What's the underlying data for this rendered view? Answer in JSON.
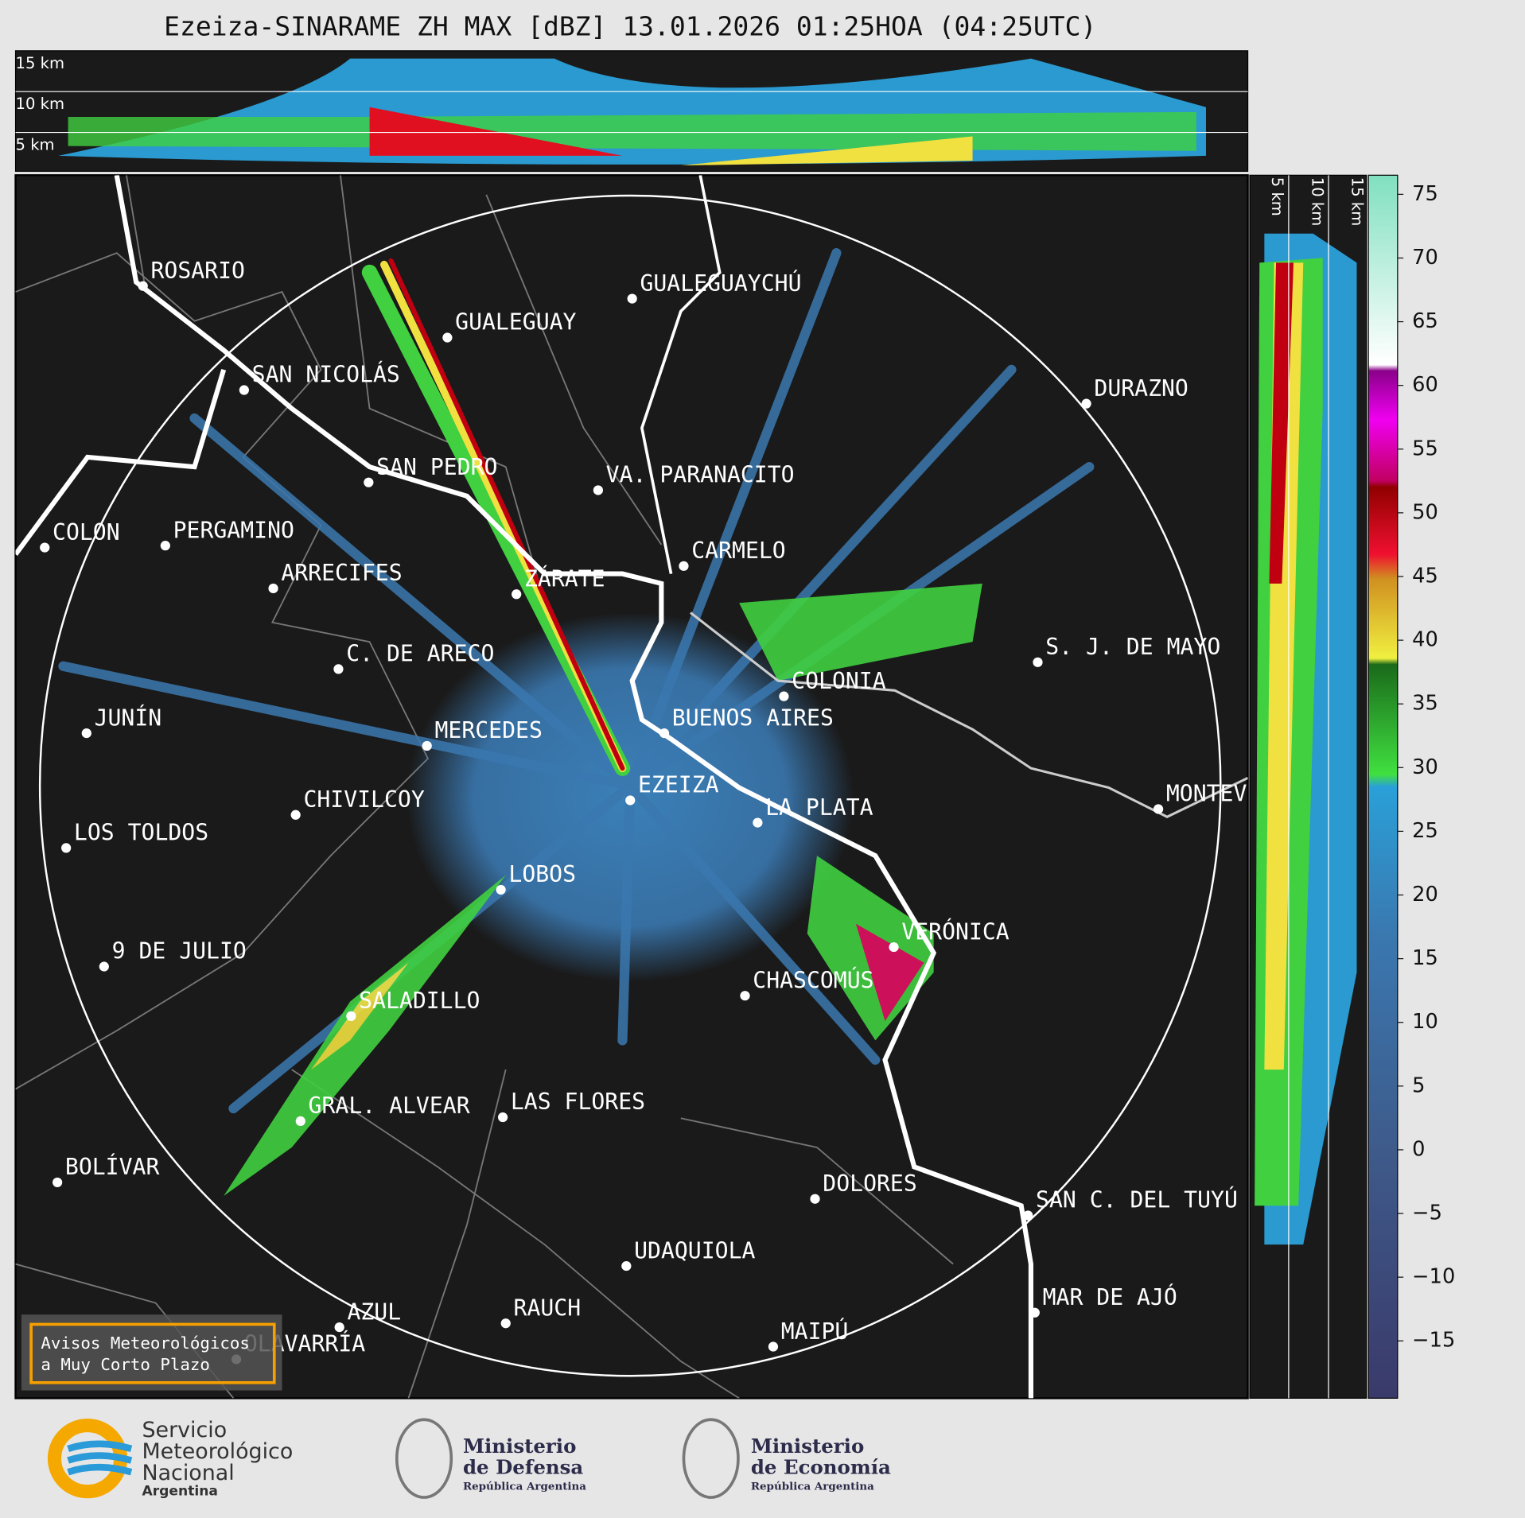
{
  "title": "Ezeiza-SINARAME ZH MAX [dBZ] 13.01.2026 01:25HOA (04:25UTC)",
  "height_labels": [
    "15 km",
    "10 km",
    "5 km"
  ],
  "cities": [
    "ROSARIO",
    "GUALEGUAYCHÚ",
    "GUALEGUAY",
    "SAN NICOLÁS",
    "DURAZNO",
    "SAN PEDRO",
    "VA. PARANACITO",
    "COLON",
    "PERGAMINO",
    "CARMELO",
    "ARRECIFES",
    "ZÁRATE",
    "C. DE ARECO",
    "S. J. DE MAYO",
    "COLONIA",
    "BUENOS AIRES",
    "JUNÍN",
    "MERCEDES",
    "EZEIZA",
    "CHIVILCOY",
    "LA PLATA",
    "MONTEVIDEO",
    "LOS TOLDOS",
    "LOBOS",
    "VERÓNICA",
    "9 DE JULIO",
    "CHASCOMÚS",
    "SALADILLO",
    "GRAL. ALVEAR",
    "LAS FLORES",
    "BOLÍVAR",
    "DOLORES",
    "SAN C. DEL TUYÚ",
    "UDAQUIOLA",
    "MAR DE AJÓ",
    "AZUL",
    "RAUCH",
    "MAIPÚ",
    "OLAVARRÍA"
  ],
  "colorbar": {
    "clim": [
      -19.5,
      76.5
    ],
    "ticks": [
      75,
      70,
      65,
      60,
      55,
      50,
      45,
      40,
      35,
      30,
      25,
      20,
      15,
      10,
      5,
      0,
      {
        "value": -5,
        "label": "−5"
      },
      {
        "value": -10,
        "label": "−10"
      },
      {
        "value": -15,
        "label": "−15"
      }
    ]
  },
  "alert_button": [
    "Avisos Meteorológicos",
    "a Muy Corto Plazo"
  ],
  "footer": {
    "smn": [
      "Servicio",
      "Meteorológico",
      "Nacional",
      "Argentina"
    ],
    "defensa": [
      "Ministerio",
      "de Defensa",
      "República Argentina"
    ],
    "economia": [
      "Ministerio",
      "de Economía",
      "República Argentina"
    ]
  }
}
